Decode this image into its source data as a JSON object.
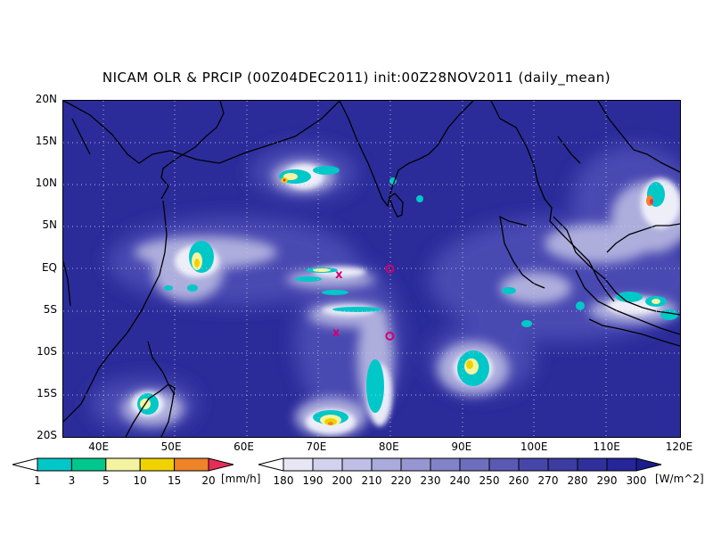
{
  "title": "NICAM OLR & PRCIP (00Z04DEC2011) init:00Z28NOV2011 (daily_mean)",
  "lat_labels": [
    "20N",
    "15N",
    "10N",
    "5N",
    "EQ",
    "5S",
    "10S",
    "15S",
    "20S"
  ],
  "lon_labels": [
    "40E",
    "50E",
    "60E",
    "70E",
    "80E",
    "90E",
    "100E",
    "110E",
    "120E"
  ],
  "precip_colorbar": {
    "labels": [
      "1",
      "3",
      "5",
      "10",
      "15",
      "20"
    ],
    "unit": "[mm/h]",
    "colors": [
      "#ffffff",
      "#00c8c8",
      "#00c88c",
      "#f4f4a0",
      "#f0d200",
      "#f08228",
      "#e62d5a"
    ]
  },
  "olr_colorbar": {
    "labels": [
      "180",
      "190",
      "200",
      "210",
      "220",
      "230",
      "240",
      "250",
      "260",
      "270",
      "280",
      "290",
      "300"
    ],
    "unit": "[W/m^2]",
    "colors": [
      "#ffffff",
      "#e6e6f5",
      "#d2d2ee",
      "#bebee6",
      "#aaaadc",
      "#9696d2",
      "#8282c8",
      "#6e6ebe",
      "#5a5ab4",
      "#4646aa",
      "#3c3ca3",
      "#30309d",
      "#26269a",
      "#1c1c90"
    ]
  },
  "markers": [
    {
      "type": "x",
      "label": "x",
      "color": "#d2006e",
      "lon": 73,
      "lat": -0.7
    },
    {
      "type": "x",
      "label": "x",
      "color": "#d2006e",
      "lon": 72.6,
      "lat": -7.6
    },
    {
      "type": "circle",
      "label": "o",
      "color": "#d2006e",
      "lon": 80,
      "lat": 0
    },
    {
      "type": "circle",
      "label": "o",
      "color": "#d2006e",
      "lon": 80,
      "lat": -8
    }
  ]
}
